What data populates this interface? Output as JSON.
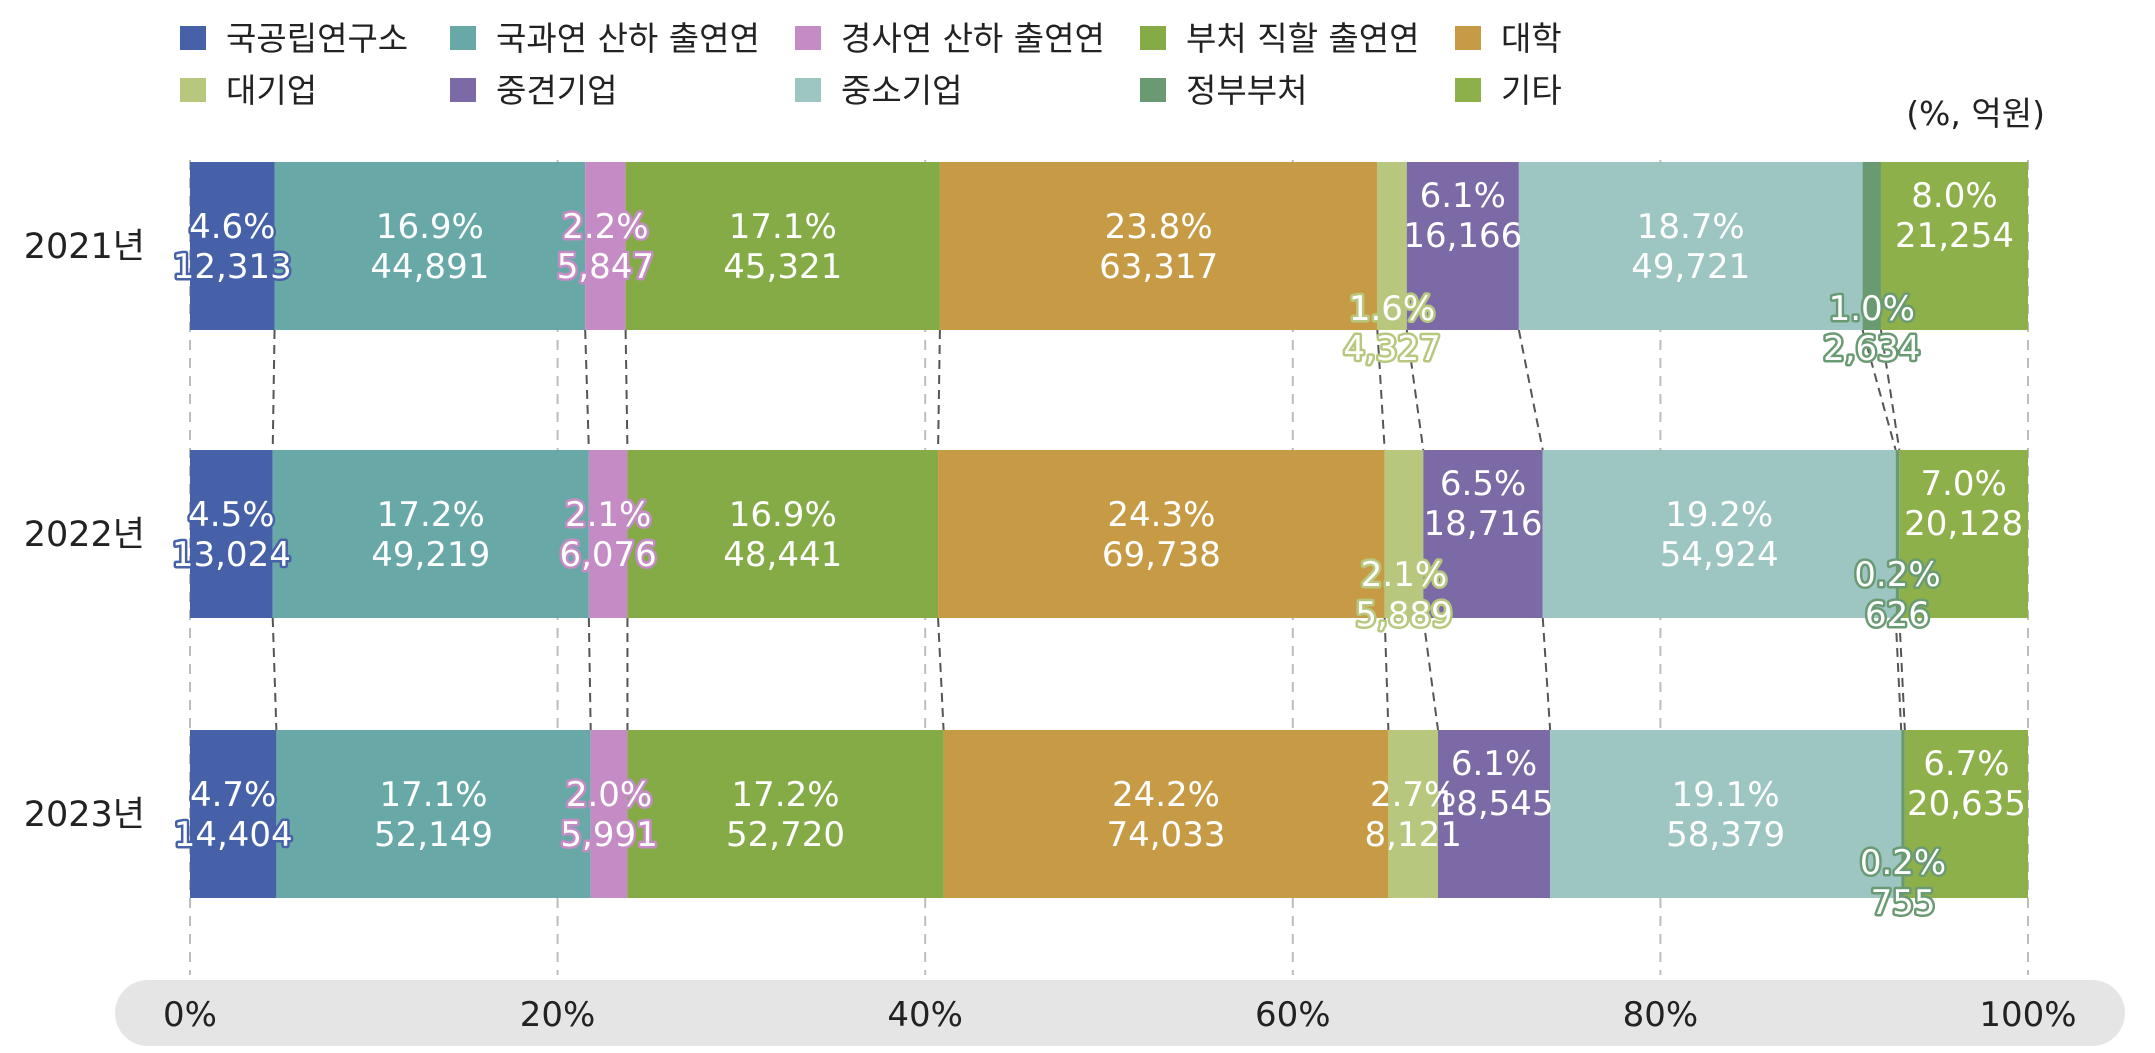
{
  "chart_data": {
    "type": "bar",
    "orientation": "horizontal",
    "stacked": "percent",
    "unit_label": "(%, 억원)",
    "categories": [
      "2021년",
      "2022년",
      "2023년"
    ],
    "xlim": [
      0,
      100
    ],
    "x_ticks": [
      "0%",
      "20%",
      "40%",
      "60%",
      "80%",
      "100%"
    ],
    "legend_position": "top",
    "series": [
      {
        "name": "국공립연구소",
        "color": "#4661A8",
        "percent": [
          4.6,
          4.5,
          4.7
        ],
        "percent_labels": [
          "4.6%",
          "4.5%",
          "4.7%"
        ],
        "values": [
          "12,313",
          "13,024",
          "14,404"
        ]
      },
      {
        "name": "국과연 산하 출연연",
        "color": "#68A9A8",
        "percent": [
          16.9,
          17.2,
          17.1
        ],
        "percent_labels": [
          "16.9%",
          "17.2%",
          "17.1%"
        ],
        "values": [
          "44,891",
          "49,219",
          "52,149"
        ]
      },
      {
        "name": "경사연 산하 출연연",
        "color": "#C48BC4",
        "percent": [
          2.2,
          2.1,
          2.0
        ],
        "percent_labels": [
          "2.2%",
          "2.1%",
          "2.0%"
        ],
        "values": [
          "5,847",
          "6,076",
          "5,991"
        ]
      },
      {
        "name": "부처 직할 출연연",
        "color": "#85AB47",
        "percent": [
          17.1,
          16.9,
          17.2
        ],
        "percent_labels": [
          "17.1%",
          "16.9%",
          "17.2%"
        ],
        "values": [
          "45,321",
          "48,441",
          "52,720"
        ]
      },
      {
        "name": "대학",
        "color": "#C79B45",
        "percent": [
          23.8,
          24.3,
          24.2
        ],
        "percent_labels": [
          "23.8%",
          "24.3%",
          "24.2%"
        ],
        "values": [
          "63,317",
          "69,738",
          "74,033"
        ]
      },
      {
        "name": "대기업",
        "color": "#B7C87E",
        "percent": [
          1.6,
          2.1,
          2.7
        ],
        "percent_labels": [
          "1.6%",
          "2.1%",
          "2.7%"
        ],
        "values": [
          "4,327",
          "5,889",
          "8,121"
        ]
      },
      {
        "name": "중견기업",
        "color": "#7C6AA6",
        "percent": [
          6.1,
          6.5,
          6.1
        ],
        "percent_labels": [
          "6.1%",
          "6.5%",
          "6.1%"
        ],
        "values": [
          "16,166",
          "18,716",
          "18,545"
        ]
      },
      {
        "name": "중소기업",
        "color": "#9DC5C2",
        "percent": [
          18.7,
          19.2,
          19.1
        ],
        "percent_labels": [
          "18.7%",
          "19.2%",
          "19.1%"
        ],
        "values": [
          "49,721",
          "54,924",
          "58,379"
        ]
      },
      {
        "name": "정부부처",
        "color": "#6A9A71",
        "percent": [
          1.0,
          0.2,
          0.2
        ],
        "percent_labels": [
          "1.0%",
          "0.2%",
          "0.2%"
        ],
        "values": [
          "2,634",
          "626",
          "755"
        ]
      },
      {
        "name": "기타",
        "color": "#8DB04A",
        "percent": [
          8.0,
          7.0,
          6.7
        ],
        "percent_labels": [
          "8.0%",
          "7.0%",
          "6.7%"
        ],
        "values": [
          "21,254",
          "20,128",
          "20,635"
        ]
      }
    ]
  }
}
